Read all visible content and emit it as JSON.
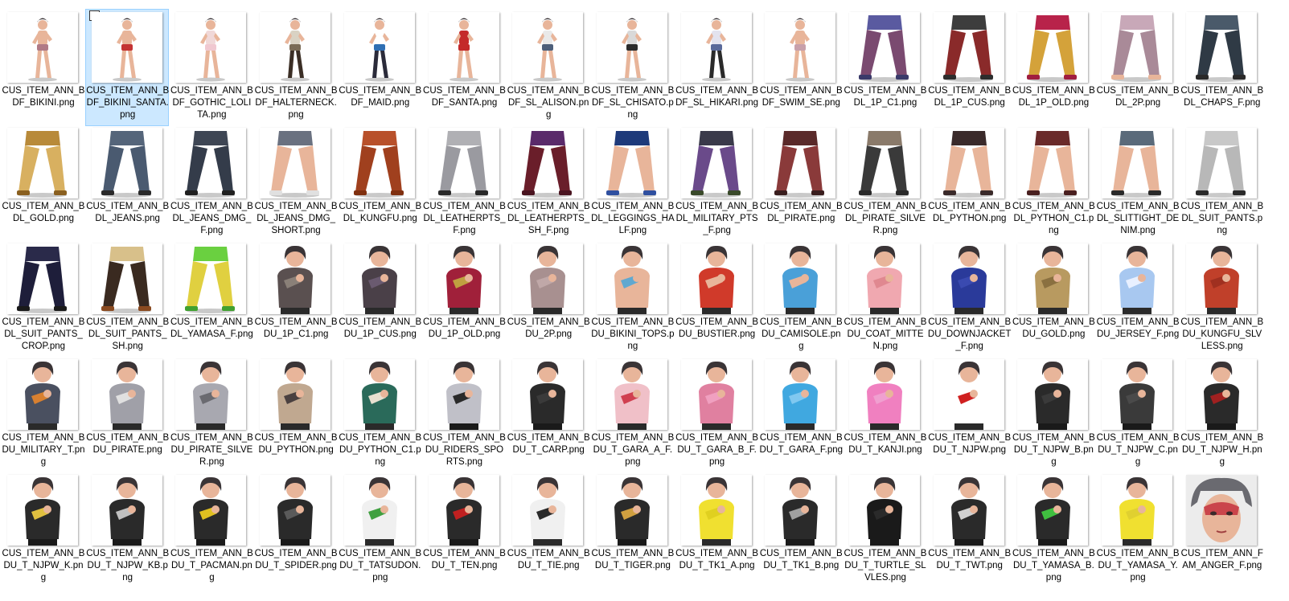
{
  "view": {
    "selected_index": 1,
    "check_glyph": "✓"
  },
  "palette": {
    "skin": "#e8b59a",
    "hair": "#3a3436",
    "shadow": "#c9c9c9",
    "selection_bg": "#cce8ff",
    "selection_border": "#99d1ff"
  },
  "files": [
    {
      "name": "CUS_ITEM_ANN_BDF_BIKINI.png",
      "kind": "body",
      "colors": [
        "#e8b59a",
        "#b07a86",
        "#e8b59a"
      ]
    },
    {
      "name": "CUS_ITEM_ANN_BDF_BIKINI_SANTA.png",
      "kind": "body",
      "colors": [
        "#e8b59a",
        "#c43333",
        "#e8b59a"
      ]
    },
    {
      "name": "CUS_ITEM_ANN_BDF_GOTHIC_LOLITA.png",
      "kind": "body",
      "colors": [
        "#f0d8d8",
        "#f0c8d0",
        "#e8b59a"
      ]
    },
    {
      "name": "CUS_ITEM_ANN_BDF_HALTERNECK.png",
      "kind": "body",
      "colors": [
        "#d9d2c3",
        "#7a6b56",
        "#3b2e25"
      ]
    },
    {
      "name": "CUS_ITEM_ANN_BDF_MAID.png",
      "kind": "body",
      "colors": [
        "#ffffff",
        "#2f6fb3",
        "#2b2b3a"
      ]
    },
    {
      "name": "CUS_ITEM_ANN_BDF_SANTA.png",
      "kind": "body",
      "colors": [
        "#c42a2a",
        "#c42a2a",
        "#e8b59a"
      ]
    },
    {
      "name": "CUS_ITEM_ANN_BDF_SL_ALISON.png",
      "kind": "body",
      "colors": [
        "#e9e9e9",
        "#4d5f7a",
        "#e8b59a"
      ]
    },
    {
      "name": "CUS_ITEM_ANN_BDF_SL_CHISATO.png",
      "kind": "body",
      "colors": [
        "#d9d9d9",
        "#2c2c2c",
        "#e8b59a"
      ]
    },
    {
      "name": "CUS_ITEM_ANN_BDF_SL_HIKARI.png",
      "kind": "body",
      "colors": [
        "#e3e3ee",
        "#5a6a9a",
        "#2a2a2a"
      ]
    },
    {
      "name": "CUS_ITEM_ANN_BDF_SWIM_SE.png",
      "kind": "body",
      "colors": [
        "#e8b59a",
        "#c8a0aa",
        "#e8b59a"
      ]
    },
    {
      "name": "CUS_ITEM_ANN_BDL_1P_C1.png",
      "kind": "legs",
      "colors": [
        "#5a5aa0",
        "#7a4a70",
        "#3a3a6a"
      ]
    },
    {
      "name": "CUS_ITEM_ANN_BDL_1P_CUS.png",
      "kind": "legs",
      "colors": [
        "#3d3d3d",
        "#8a2a2a",
        "#2d2d2d"
      ]
    },
    {
      "name": "CUS_ITEM_ANN_BDL_1P_OLD.png",
      "kind": "legs",
      "colors": [
        "#b8234a",
        "#d4a23a",
        "#a01e40"
      ]
    },
    {
      "name": "CUS_ITEM_ANN_BDL_2P.png",
      "kind": "legs",
      "colors": [
        "#c8a8b8",
        "#a98a98",
        "#e8b59a"
      ]
    },
    {
      "name": "CUS_ITEM_ANN_BDL_CHAPS_F.png",
      "kind": "legs",
      "colors": [
        "#4a5a6a",
        "#2f3a45",
        "#2a2a2a"
      ]
    },
    {
      "name": "CUS_ITEM_ANN_BDL_GOLD.png",
      "kind": "legs",
      "colors": [
        "#b88a3a",
        "#d8b060",
        "#8a6020"
      ]
    },
    {
      "name": "CUS_ITEM_ANN_BDL_JEANS.png",
      "kind": "legs",
      "colors": [
        "#55657a",
        "#4a5a70",
        "#2a2a2a"
      ]
    },
    {
      "name": "CUS_ITEM_ANN_BDL_JEANS_DMG_F.png",
      "kind": "legs",
      "colors": [
        "#3e4654",
        "#343c4a",
        "#202020"
      ]
    },
    {
      "name": "CUS_ITEM_ANN_BDL_JEANS_DMG_SHORT.png",
      "kind": "legs",
      "colors": [
        "#6a7180",
        "#e8b59a",
        "#e0e0e0"
      ]
    },
    {
      "name": "CUS_ITEM_ANN_BDL_KUNGFU.png",
      "kind": "legs",
      "colors": [
        "#b8502a",
        "#a0401e",
        "#803010"
      ]
    },
    {
      "name": "CUS_ITEM_ANN_BDL_LEATHERPTS_F.png",
      "kind": "legs",
      "colors": [
        "#b0b0b4",
        "#9a9aa0",
        "#2a2a2a"
      ]
    },
    {
      "name": "CUS_ITEM_ANN_BDL_LEATHERPTS_SH_F.png",
      "kind": "legs",
      "colors": [
        "#5a2a6a",
        "#6a1e2a",
        "#4a1420"
      ]
    },
    {
      "name": "CUS_ITEM_ANN_BDL_LEGGINGS_HALF.png",
      "kind": "legs",
      "colors": [
        "#1e3a7a",
        "#e8b59a",
        "#3050a0"
      ]
    },
    {
      "name": "CUS_ITEM_ANN_BDL_MILITARY_PTS_F.png",
      "kind": "legs",
      "colors": [
        "#3a3a4a",
        "#6a4a8a",
        "#3a4a2a"
      ]
    },
    {
      "name": "CUS_ITEM_ANN_BDL_PIRATE.png",
      "kind": "legs",
      "colors": [
        "#5a2a2a",
        "#8a3a3a",
        "#3a1e1e"
      ]
    },
    {
      "name": "CUS_ITEM_ANN_BDL_PIRATE_SILVER.png",
      "kind": "legs",
      "colors": [
        "#8a7a6a",
        "#3a3a3a",
        "#2a2a2a"
      ]
    },
    {
      "name": "CUS_ITEM_ANN_BDL_PYTHON.png",
      "kind": "legs",
      "colors": [
        "#3a2a2a",
        "#e8b59a",
        "#3a2a2a"
      ]
    },
    {
      "name": "CUS_ITEM_ANN_BDL_PYTHON_C1.png",
      "kind": "legs",
      "colors": [
        "#6a2a2a",
        "#e8b59a",
        "#4a2020"
      ]
    },
    {
      "name": "CUS_ITEM_ANN_BDL_SLITTIGHT_DENIM.png",
      "kind": "legs",
      "colors": [
        "#5a6a7a",
        "#e8b59a",
        "#2a2a2a"
      ]
    },
    {
      "name": "CUS_ITEM_ANN_BDL_SUIT_PANTS.png",
      "kind": "legs",
      "colors": [
        "#c8c8c8",
        "#b8b8b8",
        "#2a2a2a"
      ]
    },
    {
      "name": "CUS_ITEM_ANN_BDL_SUIT_PANTS_CROP.png",
      "kind": "legs",
      "colors": [
        "#2a2a4a",
        "#1e1e3a",
        "#1a1a1a"
      ]
    },
    {
      "name": "CUS_ITEM_ANN_BDL_SUIT_PANTS_SH.png",
      "kind": "legs",
      "colors": [
        "#d8c08a",
        "#3a2a20",
        "#8a4a20"
      ]
    },
    {
      "name": "CUS_ITEM_ANN_BDL_YAMASA_F.png",
      "kind": "legs",
      "colors": [
        "#6ad040",
        "#e0d040",
        "#40a030"
      ]
    },
    {
      "name": "CUS_ITEM_ANN_BDU_1P_C1.png",
      "kind": "torso",
      "colors": [
        "#5a5050",
        "#8a8078",
        "#2a2a2a"
      ]
    },
    {
      "name": "CUS_ITEM_ANN_BDU_1P_CUS.png",
      "kind": "torso",
      "colors": [
        "#4a4048",
        "#6a5a70",
        "#2a2a2a"
      ]
    },
    {
      "name": "CUS_ITEM_ANN_BDU_1P_OLD.png",
      "kind": "torso",
      "colors": [
        "#a0203a",
        "#c0a040",
        "#2a2a2a"
      ]
    },
    {
      "name": "CUS_ITEM_ANN_BDU_2P.png",
      "kind": "torso",
      "colors": [
        "#a89090",
        "#c0a8a8",
        "#2a2a2a"
      ]
    },
    {
      "name": "CUS_ITEM_ANN_BDU_BIKINI_TOPS.png",
      "kind": "torso",
      "colors": [
        "#e8b59a",
        "#60a8d0",
        "#2a2a2a"
      ]
    },
    {
      "name": "CUS_ITEM_ANN_BDU_BUSTIER.png",
      "kind": "torso",
      "colors": [
        "#d03a2a",
        "#e8b59a",
        "#2a2a2a"
      ]
    },
    {
      "name": "CUS_ITEM_ANN_BDU_CAMISOLE.png",
      "kind": "torso",
      "colors": [
        "#4aa0d8",
        "#e8b59a",
        "#2a2a2a"
      ]
    },
    {
      "name": "CUS_ITEM_ANN_BDU_COAT_MITTEN.png",
      "kind": "torso",
      "colors": [
        "#f0a8b0",
        "#e08890",
        "#2a2a2a"
      ]
    },
    {
      "name": "CUS_ITEM_ANN_BDU_DOWNJACKET_F.png",
      "kind": "torso",
      "colors": [
        "#2a3a9a",
        "#3a4ab0",
        "#2a2a2a"
      ]
    },
    {
      "name": "CUS_ITEM_ANN_BDU_GOLD.png",
      "kind": "torso",
      "colors": [
        "#b89a60",
        "#8a7040",
        "#2a2a2a"
      ]
    },
    {
      "name": "CUS_ITEM_ANN_BDU_JERSEY_F.png",
      "kind": "torso",
      "colors": [
        "#a8c8f0",
        "#e8f0ff",
        "#2a2a2a"
      ]
    },
    {
      "name": "CUS_ITEM_ANN_BDU_KUNGFU_SLVLESS.png",
      "kind": "torso",
      "colors": [
        "#c0402a",
        "#a03020",
        "#2a2a2a"
      ]
    },
    {
      "name": "CUS_ITEM_ANN_BDU_MILITARY_T.png",
      "kind": "torso",
      "colors": [
        "#4a5060",
        "#d88030",
        "#2a2a2a"
      ]
    },
    {
      "name": "CUS_ITEM_ANN_BDU_PIRATE.png",
      "kind": "torso",
      "colors": [
        "#a0a0a8",
        "#e0e0e0",
        "#2a2a2a"
      ]
    },
    {
      "name": "CUS_ITEM_ANN_BDU_PIRATE_SILVER.png",
      "kind": "torso",
      "colors": [
        "#a8a8b0",
        "#6a6a70",
        "#2a2a2a"
      ]
    },
    {
      "name": "CUS_ITEM_ANN_BDU_PYTHON.png",
      "kind": "torso",
      "colors": [
        "#c0a890",
        "#4a4040",
        "#2a2a2a"
      ]
    },
    {
      "name": "CUS_ITEM_ANN_BDU_PYTHON_C1.png",
      "kind": "torso",
      "colors": [
        "#2a6a5a",
        "#e8e0d0",
        "#2a2a2a"
      ]
    },
    {
      "name": "CUS_ITEM_ANN_BDU_RIDERS_SPORTS.png",
      "kind": "torso",
      "colors": [
        "#c0c0c8",
        "#2a2a2a",
        "#1a1a1a"
      ]
    },
    {
      "name": "CUS_ITEM_ANN_BDU_T_CARP.png",
      "kind": "torso",
      "colors": [
        "#2a2a2a",
        "#3a3a3a",
        "#1a1a1a"
      ]
    },
    {
      "name": "CUS_ITEM_ANN_BDU_T_GARA_A_F.png",
      "kind": "torso",
      "colors": [
        "#f0c0c8",
        "#d04050",
        "#2a2a2a"
      ]
    },
    {
      "name": "CUS_ITEM_ANN_BDU_T_GARA_B_F.png",
      "kind": "torso",
      "colors": [
        "#e080a0",
        "#f0a0c0",
        "#2a2a2a"
      ]
    },
    {
      "name": "CUS_ITEM_ANN_BDU_T_GARA_F.png",
      "kind": "torso",
      "colors": [
        "#40a8e0",
        "#80c8f0",
        "#2a2a2a"
      ]
    },
    {
      "name": "CUS_ITEM_ANN_BDU_T_KANJI.png",
      "kind": "torso",
      "colors": [
        "#f080c0",
        "#f0a0d0",
        "#2a2a2a"
      ]
    },
    {
      "name": "CUS_ITEM_ANN_BDU_T_NJPW.png",
      "kind": "torso",
      "colors": [
        "#ffffff",
        "#d02020",
        "#2a2a2a"
      ]
    },
    {
      "name": "CUS_ITEM_ANN_BDU_T_NJPW_B.png",
      "kind": "torso",
      "colors": [
        "#2a2a2a",
        "#3a3a3a",
        "#1a1a1a"
      ]
    },
    {
      "name": "CUS_ITEM_ANN_BDU_T_NJPW_C.png",
      "kind": "torso",
      "colors": [
        "#3a3a3a",
        "#4a4a4a",
        "#1a1a1a"
      ]
    },
    {
      "name": "CUS_ITEM_ANN_BDU_T_NJPW_H.png",
      "kind": "torso",
      "colors": [
        "#2a2a2a",
        "#a02020",
        "#1a1a1a"
      ]
    },
    {
      "name": "CUS_ITEM_ANN_BDU_T_NJPW_K.png",
      "kind": "torso",
      "colors": [
        "#2a2a2a",
        "#e0c040",
        "#1a1a1a"
      ]
    },
    {
      "name": "CUS_ITEM_ANN_BDU_T_NJPW_KB.png",
      "kind": "torso",
      "colors": [
        "#2a2a2a",
        "#c0c0c0",
        "#1a1a1a"
      ]
    },
    {
      "name": "CUS_ITEM_ANN_BDU_T_PACMAN.png",
      "kind": "torso",
      "colors": [
        "#2a2a2a",
        "#e0c020",
        "#1a1a1a"
      ]
    },
    {
      "name": "CUS_ITEM_ANN_BDU_T_SPIDER.png",
      "kind": "torso",
      "colors": [
        "#2a2a2a",
        "#5a5a5a",
        "#1a1a1a"
      ]
    },
    {
      "name": "CUS_ITEM_ANN_BDU_T_TATSUDON.png",
      "kind": "torso",
      "colors": [
        "#f0f0f0",
        "#40a040",
        "#2a2a2a"
      ]
    },
    {
      "name": "CUS_ITEM_ANN_BDU_T_TEN.png",
      "kind": "torso",
      "colors": [
        "#2a2a2a",
        "#c02020",
        "#1a1a1a"
      ]
    },
    {
      "name": "CUS_ITEM_ANN_BDU_T_TIE.png",
      "kind": "torso",
      "colors": [
        "#f0f0f0",
        "#2a2a2a",
        "#2a2a2a"
      ]
    },
    {
      "name": "CUS_ITEM_ANN_BDU_T_TIGER.png",
      "kind": "torso",
      "colors": [
        "#2a2a2a",
        "#d0a040",
        "#1a1a1a"
      ]
    },
    {
      "name": "CUS_ITEM_ANN_BDU_T_TK1_A.png",
      "kind": "torso",
      "colors": [
        "#f0e030",
        "#e0d020",
        "#2a2a2a"
      ]
    },
    {
      "name": "CUS_ITEM_ANN_BDU_T_TK1_B.png",
      "kind": "torso",
      "colors": [
        "#2a2a2a",
        "#a0a0a0",
        "#1a1a1a"
      ]
    },
    {
      "name": "CUS_ITEM_ANN_BDU_T_TURTLE_SLVLES.png",
      "kind": "torso",
      "colors": [
        "#1a1a1a",
        "#2a2a2a",
        "#1a1a1a"
      ]
    },
    {
      "name": "CUS_ITEM_ANN_BDU_T_TWT.png",
      "kind": "torso",
      "colors": [
        "#2a2a2a",
        "#d0d0d0",
        "#1a1a1a"
      ]
    },
    {
      "name": "CUS_ITEM_ANN_BDU_T_YAMASA_B.png",
      "kind": "torso",
      "colors": [
        "#2a2a2a",
        "#40c040",
        "#1a1a1a"
      ]
    },
    {
      "name": "CUS_ITEM_ANN_BDU_T_YAMASA_Y.png",
      "kind": "torso",
      "colors": [
        "#f0e030",
        "#e0d030",
        "#2a2a2a"
      ]
    },
    {
      "name": "CUS_ITEM_ANN_FAM_ANGER_F.png",
      "kind": "head",
      "colors": [
        "#6a6a70",
        "#c02030",
        "#e8b59a"
      ]
    }
  ]
}
